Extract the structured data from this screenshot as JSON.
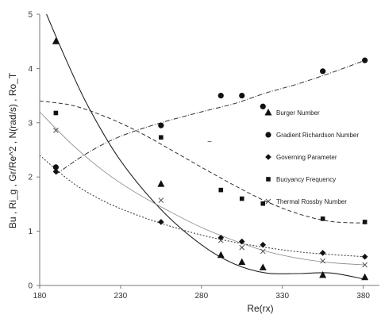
{
  "chart_data": {
    "type": "scatter",
    "ylabel": "Bu , Ri_g , Gr/Re^2 , N(rad/s) , Ro_T",
    "xlabel": "Re(rx)",
    "xlim": [
      180,
      390
    ],
    "ylim": [
      0,
      5
    ],
    "xticks": [
      180,
      230,
      280,
      330,
      380
    ],
    "yticks": [
      0,
      1,
      2,
      3,
      4,
      5
    ],
    "grid": false,
    "legend_position": "right",
    "series": [
      {
        "name": "Burger Number",
        "marker": "triangle",
        "x": [
          190,
          255,
          292,
          305,
          318,
          355,
          381
        ],
        "y": [
          4.5,
          1.87,
          0.56,
          0.43,
          0.33,
          0.19,
          0.15
        ],
        "trend": [
          [
            180,
            5.3
          ],
          [
            195,
            4.25
          ],
          [
            210,
            3.3
          ],
          [
            230,
            2.3
          ],
          [
            255,
            1.4
          ],
          [
            280,
            0.75
          ],
          [
            300,
            0.4
          ],
          [
            320,
            0.23
          ],
          [
            340,
            0.22
          ],
          [
            360,
            0.23
          ],
          [
            380,
            0.12
          ]
        ],
        "trend_style": "solid"
      },
      {
        "name": "Gradient Richardson Number",
        "marker": "circle",
        "x": [
          190,
          255,
          292,
          305,
          318,
          355,
          381
        ],
        "y": [
          2.18,
          2.95,
          3.5,
          3.5,
          3.3,
          3.95,
          4.15
        ],
        "trend": [
          [
            190,
            2.05
          ],
          [
            210,
            2.45
          ],
          [
            230,
            2.75
          ],
          [
            255,
            3.0
          ],
          [
            280,
            3.2
          ],
          [
            300,
            3.35
          ],
          [
            320,
            3.55
          ],
          [
            340,
            3.72
          ],
          [
            360,
            3.92
          ],
          [
            381,
            4.15
          ]
        ],
        "trend_style": "dash-dot"
      },
      {
        "name": "Governing Parameter",
        "marker": "diamond",
        "x": [
          190,
          255,
          292,
          305,
          318,
          355,
          381
        ],
        "y": [
          2.1,
          1.17,
          0.88,
          0.81,
          0.75,
          0.6,
          0.53
        ],
        "trend": [
          [
            180,
            2.4
          ],
          [
            200,
            1.9
          ],
          [
            220,
            1.55
          ],
          [
            240,
            1.3
          ],
          [
            260,
            1.1
          ],
          [
            280,
            0.93
          ],
          [
            300,
            0.8
          ],
          [
            320,
            0.7
          ],
          [
            340,
            0.62
          ],
          [
            360,
            0.57
          ],
          [
            381,
            0.53
          ]
        ],
        "trend_style": "dotted"
      },
      {
        "name": "Buoyancy Frequency",
        "marker": "square",
        "x": [
          190,
          255,
          292,
          305,
          318,
          355,
          381
        ],
        "y": [
          3.18,
          2.73,
          1.76,
          1.6,
          1.51,
          1.23,
          1.17
        ],
        "trend": [
          [
            180,
            3.4
          ],
          [
            200,
            3.32
          ],
          [
            220,
            3.12
          ],
          [
            240,
            2.85
          ],
          [
            260,
            2.52
          ],
          [
            280,
            2.18
          ],
          [
            300,
            1.85
          ],
          [
            320,
            1.55
          ],
          [
            340,
            1.32
          ],
          [
            360,
            1.18
          ],
          [
            381,
            1.15
          ]
        ],
        "trend_style": "dashed"
      },
      {
        "name": "Thermal Rossby Number",
        "marker": "x",
        "x": [
          190,
          255,
          292,
          305,
          318,
          355,
          381
        ],
        "y": [
          2.86,
          1.57,
          0.83,
          0.7,
          0.63,
          0.45,
          0.38
        ],
        "trend": [
          [
            180,
            3.2
          ],
          [
            200,
            2.6
          ],
          [
            220,
            2.1
          ],
          [
            240,
            1.7
          ],
          [
            260,
            1.37
          ],
          [
            280,
            1.07
          ],
          [
            300,
            0.83
          ],
          [
            320,
            0.63
          ],
          [
            340,
            0.5
          ],
          [
            360,
            0.42
          ],
          [
            381,
            0.38
          ]
        ],
        "trend_style": "thin-solid"
      }
    ],
    "annotations": [
      {
        "text": "~",
        "x": 285,
        "y": 2.6
      }
    ]
  }
}
